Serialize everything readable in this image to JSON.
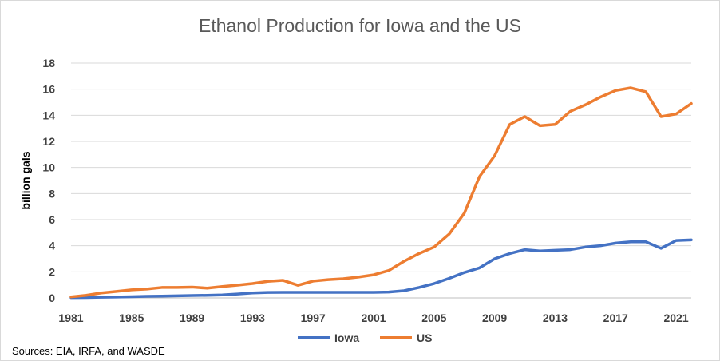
{
  "chart_data": {
    "type": "line",
    "title": "Ethanol Production for Iowa and the US",
    "ylabel": "billion gals",
    "xlabel": "",
    "source": "Sources: EIA, IRFA, and WASDE",
    "ylim": [
      0,
      18
    ],
    "yticks": [
      0,
      2,
      4,
      6,
      8,
      10,
      12,
      14,
      16,
      18
    ],
    "xlim": [
      1981,
      2022
    ],
    "xticks": [
      1981,
      1985,
      1989,
      1993,
      1997,
      2001,
      2005,
      2009,
      2013,
      2017,
      2021
    ],
    "grid": true,
    "legend": "bottom",
    "x": [
      1981,
      1982,
      1983,
      1984,
      1985,
      1986,
      1987,
      1988,
      1989,
      1990,
      1991,
      1992,
      1993,
      1994,
      1995,
      1996,
      1997,
      1998,
      1999,
      2000,
      2001,
      2002,
      2003,
      2004,
      2005,
      2006,
      2007,
      2008,
      2009,
      2010,
      2011,
      2012,
      2013,
      2014,
      2015,
      2016,
      2017,
      2018,
      2019,
      2020,
      2021,
      2022
    ],
    "series": [
      {
        "name": "Iowa",
        "color": "#4472c4",
        "values": [
          0.02,
          0.03,
          0.05,
          0.07,
          0.09,
          0.12,
          0.14,
          0.16,
          0.18,
          0.2,
          0.23,
          0.3,
          0.38,
          0.42,
          0.43,
          0.43,
          0.43,
          0.43,
          0.43,
          0.43,
          0.43,
          0.45,
          0.55,
          0.8,
          1.1,
          1.5,
          1.95,
          2.3,
          3.0,
          3.4,
          3.7,
          3.6,
          3.65,
          3.7,
          3.9,
          4.0,
          4.2,
          4.3,
          4.3,
          3.8,
          4.4,
          4.45
        ]
      },
      {
        "name": "US",
        "color": "#ed7d31",
        "values": [
          0.08,
          0.2,
          0.38,
          0.5,
          0.62,
          0.68,
          0.8,
          0.8,
          0.83,
          0.75,
          0.87,
          0.98,
          1.1,
          1.27,
          1.35,
          0.97,
          1.29,
          1.4,
          1.47,
          1.6,
          1.77,
          2.1,
          2.8,
          3.4,
          3.9,
          4.9,
          6.5,
          9.3,
          10.9,
          13.3,
          13.9,
          13.2,
          13.3,
          14.3,
          14.8,
          15.4,
          15.9,
          16.1,
          15.8,
          13.9,
          14.1,
          14.9
        ]
      }
    ]
  }
}
